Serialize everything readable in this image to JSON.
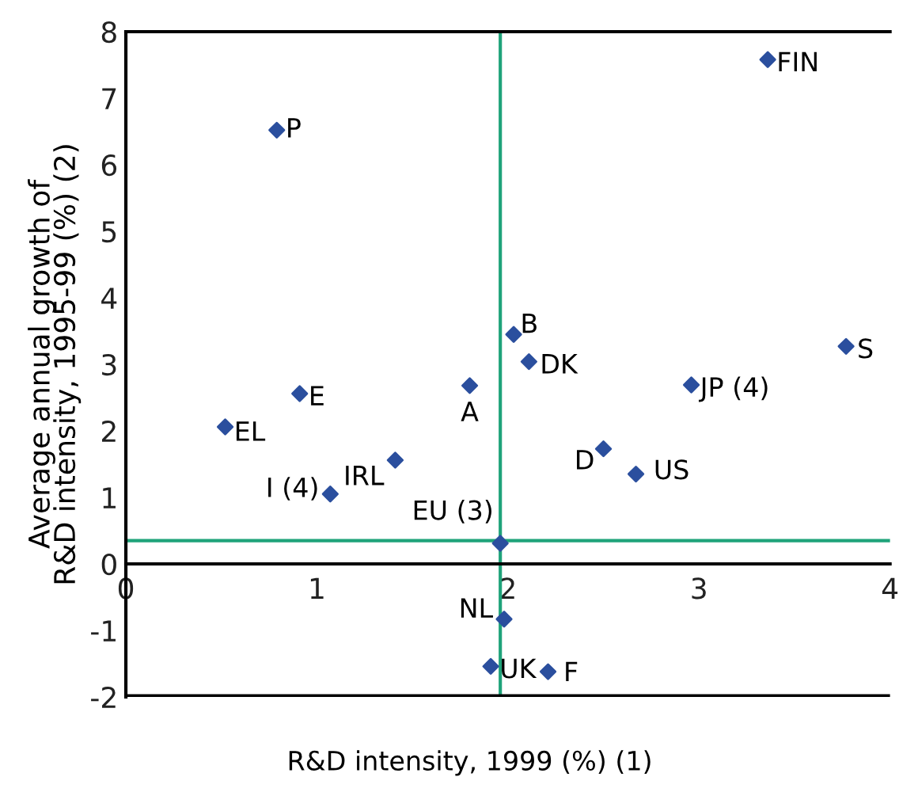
{
  "chart_data": {
    "type": "scatter",
    "xlabel": "R&D intensity, 1999 (%) (1)",
    "ylabel": "Average annual growth of\nR&D intensity, 1995-99 (%) (2)",
    "x": [
      0.79,
      0.91,
      0.52,
      1.07,
      1.41,
      1.8,
      2.03,
      2.11,
      3.36,
      3.77,
      2.96,
      2.5,
      2.67,
      1.96,
      1.98,
      1.91,
      2.21
    ],
    "series": [
      {
        "color": "#2b4f9e",
        "values": [
          6.52,
          2.56,
          2.06,
          1.05,
          1.56,
          2.68,
          3.45,
          3.04,
          7.58,
          3.27,
          2.69,
          1.73,
          1.35,
          0.31,
          -0.83,
          -1.54,
          -1.62
        ]
      }
    ],
    "marker": "diamond",
    "grid": false,
    "legend": false,
    "xlim": [
      0,
      4
    ],
    "xticks": [
      0,
      1,
      2,
      3,
      4
    ],
    "ylim": [
      -2,
      8
    ],
    "yticks": [
      -2,
      -1,
      0,
      1,
      2,
      3,
      4,
      5,
      6,
      7,
      8
    ],
    "ref_lines": [
      {
        "axis": "x",
        "value": 1.96,
        "color": "#1fa37a"
      },
      {
        "axis": "y",
        "value": 0.35,
        "color": "#1fa37a"
      }
    ],
    "annotations": [
      {
        "text": "P",
        "x": 0.79,
        "y": 6.52
      },
      {
        "text": "E",
        "x": 0.91,
        "y": 2.56
      },
      {
        "text": "EL",
        "x": 0.52,
        "y": 2.06
      },
      {
        "text": "I (4)",
        "x": 1.07,
        "y": 1.05
      },
      {
        "text": "IRL",
        "x": 1.41,
        "y": 1.56
      },
      {
        "text": "A",
        "x": 1.8,
        "y": 2.68
      },
      {
        "text": "B",
        "x": 2.03,
        "y": 3.45
      },
      {
        "text": "DK",
        "x": 2.11,
        "y": 3.04
      },
      {
        "text": "FIN",
        "x": 3.36,
        "y": 7.58
      },
      {
        "text": "S",
        "x": 3.77,
        "y": 3.27
      },
      {
        "text": "JP (4)",
        "x": 2.96,
        "y": 2.69
      },
      {
        "text": "D",
        "x": 2.5,
        "y": 1.73
      },
      {
        "text": "US",
        "x": 2.67,
        "y": 1.35
      },
      {
        "text": "EU (3)",
        "x": 1.96,
        "y": 0.31
      },
      {
        "text": "NL",
        "x": 1.98,
        "y": -0.83
      },
      {
        "text": "UK",
        "x": 1.91,
        "y": -1.54
      },
      {
        "text": "F",
        "x": 2.21,
        "y": -1.62
      }
    ]
  }
}
